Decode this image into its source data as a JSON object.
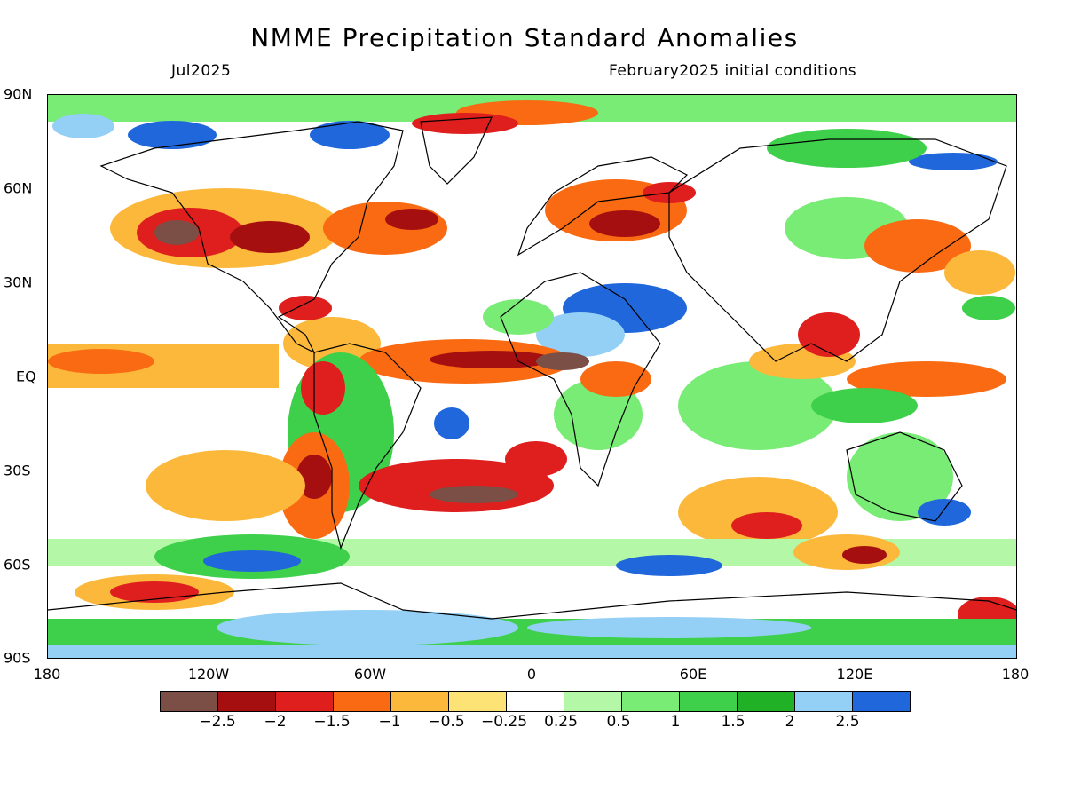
{
  "header": {
    "title": "NMME Precipitation Standard Anomalies",
    "valid_month": "Jul2025",
    "init_conditions": "February2025 initial conditions"
  },
  "axes": {
    "lat_labels": [
      "90N",
      "60N",
      "30N",
      "EQ",
      "30S",
      "60S",
      "90S"
    ],
    "lon_labels": [
      "180",
      "120W",
      "60W",
      "0",
      "60E",
      "120E",
      "180"
    ]
  },
  "colorbar": {
    "colors": [
      "#7b4f45",
      "#a50f0f",
      "#df1e1e",
      "#f96a12",
      "#fbb83a",
      "#fde376",
      "#ffffff",
      "#b4f7a6",
      "#78ec75",
      "#3ed04b",
      "#21b126",
      "#94cff6",
      "#1f67db"
    ],
    "labels": [
      "-2.5",
      "-2",
      "-1.5",
      "-1",
      "-0.5",
      "-0.25",
      "0.25",
      "0.5",
      "1",
      "1.5",
      "2",
      "2.5"
    ]
  }
}
